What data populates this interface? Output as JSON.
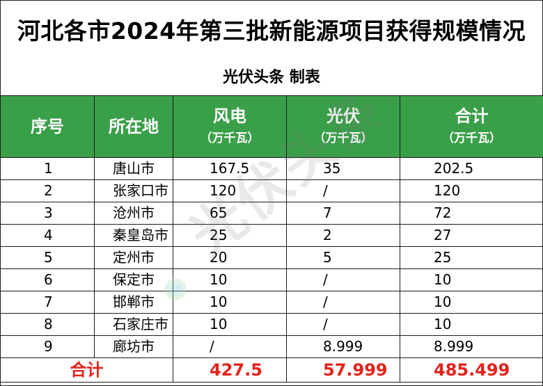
{
  "title": "河北各市2024年第三批新能源项目获得规模情况",
  "subtitle": "光伏头条 制表",
  "watermark": "光伏头条",
  "colors": {
    "header_bg": "#3a9f49",
    "total_text": "#e3231b"
  },
  "table": {
    "headers": [
      {
        "main": "序号",
        "unit": ""
      },
      {
        "main": "所在地",
        "unit": ""
      },
      {
        "main": "风电",
        "unit": "（万千瓦）"
      },
      {
        "main": "光伏",
        "unit": "（万千瓦）"
      },
      {
        "main": "合计",
        "unit": "（万千瓦）"
      }
    ],
    "rows": [
      {
        "idx": "1",
        "city": "唐山市",
        "wind": "167.5",
        "solar": "35",
        "total": "202.5"
      },
      {
        "idx": "2",
        "city": "张家口市",
        "wind": "120",
        "solar": "/",
        "total": "120"
      },
      {
        "idx": "3",
        "city": "沧州市",
        "wind": "65",
        "solar": "7",
        "total": "72"
      },
      {
        "idx": "4",
        "city": "秦皇岛市",
        "wind": "25",
        "solar": "2",
        "total": "27"
      },
      {
        "idx": "5",
        "city": "定州市",
        "wind": "20",
        "solar": "5",
        "total": "25"
      },
      {
        "idx": "6",
        "city": "保定市",
        "wind": "10",
        "solar": "/",
        "total": "10"
      },
      {
        "idx": "7",
        "city": "邯郸市",
        "wind": "10",
        "solar": "/",
        "total": "10"
      },
      {
        "idx": "8",
        "city": "石家庄市",
        "wind": "10",
        "solar": "/",
        "total": "10"
      },
      {
        "idx": "9",
        "city": "廊坊市",
        "wind": "/",
        "solar": "8.999",
        "total": "8.999"
      }
    ],
    "totals": {
      "label": "合计",
      "wind": "427.5",
      "solar": "57.999",
      "total": "485.499"
    }
  }
}
